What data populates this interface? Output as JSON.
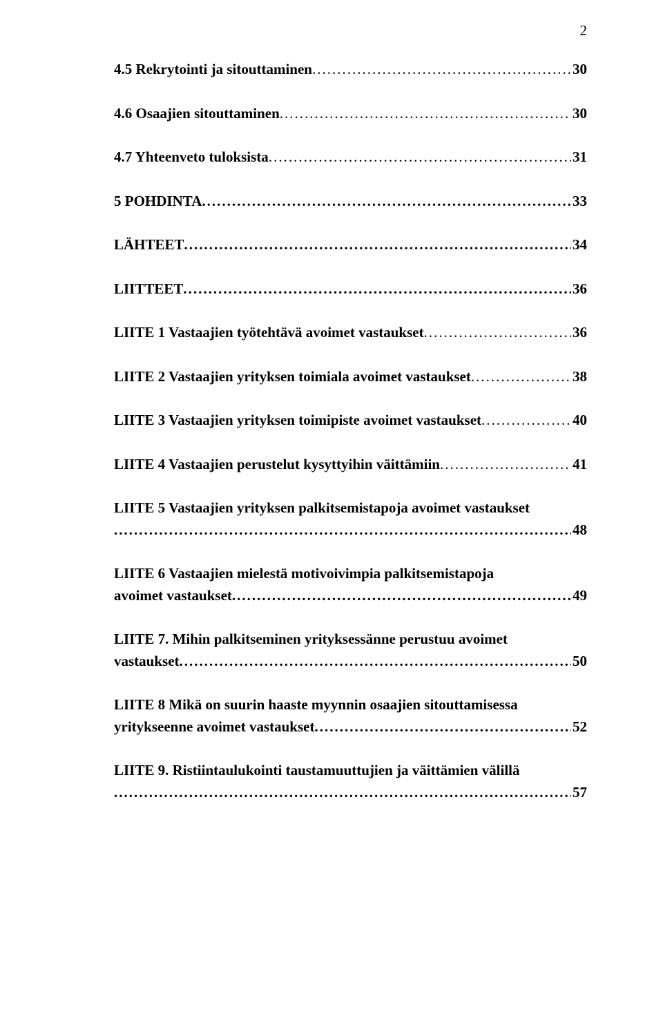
{
  "page_number": "2",
  "entries": [
    {
      "title": "4.5 Rekrytointi ja sitouttaminen",
      "page": "30",
      "style": "bold"
    },
    {
      "title": "4.6 Osaajien sitouttaminen",
      "page": "30",
      "style": "bold"
    },
    {
      "title": "4.7 Yhteenveto tuloksista",
      "page": "31",
      "style": "bold"
    },
    {
      "title": "5 POHDINTA",
      "page": "33",
      "style": "allbold"
    },
    {
      "title": "LÄHTEET",
      "page": "34",
      "style": "allbold"
    },
    {
      "title": "LIITTEET",
      "page": "36",
      "style": "allbold"
    },
    {
      "title": "LIITE 1 Vastaajien työtehtävä avoimet vastaukset",
      "page": "36",
      "style": "bold"
    },
    {
      "title": "LIITE 2 Vastaajien yrityksen toimiala avoimet vastaukset",
      "page": "38",
      "style": "bold"
    },
    {
      "title": "LIITE 3 Vastaajien yrityksen toimipiste avoimet vastaukset",
      "page": "40",
      "style": "bold"
    },
    {
      "title": "LIITE 4 Vastaajien perustelut kysyttyihin väittämiin",
      "page": "41",
      "style": "bold"
    },
    {
      "title_line1": "LIITE 5 Vastaajien yrityksen palkitsemistapoja avoimet vastaukset",
      "title_line2": "",
      "page": "48",
      "style": "bold",
      "multiline": true
    },
    {
      "title_line1": "LIITE 6 Vastaajien mielestä motivoivimpia palkitsemistapoja",
      "title_line2": "avoimet vastaukset",
      "page": "49",
      "style": "bold",
      "multiline": true
    },
    {
      "title_line1": "LIITE 7. Mihin palkitseminen yrityksessänne perustuu avoimet",
      "title_line2": "vastaukset",
      "page": "50",
      "style": "bold",
      "multiline": true
    },
    {
      "title_line1": "LIITE 8 Mikä on suurin haaste myynnin osaajien sitouttamisessa",
      "title_line2": "yritykseenne avoimet vastaukset",
      "page": "52",
      "style": "bold",
      "multiline": true
    },
    {
      "title_line1": "LIITE 9. Ristiintaulukointi taustamuuttujien ja väittämien välillä",
      "title_line2": "",
      "page": "57",
      "style": "bold",
      "multiline": true
    }
  ]
}
